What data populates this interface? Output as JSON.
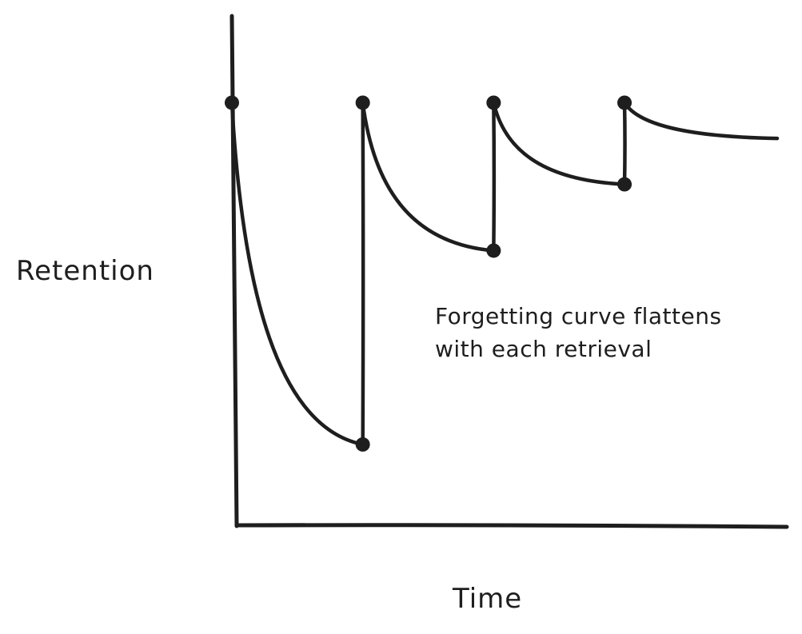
{
  "chart_data": {
    "type": "line",
    "title": "",
    "xlabel": "Time",
    "ylabel": "Retention",
    "ylim": [
      0,
      1
    ],
    "grid": false,
    "legend": "none",
    "annotation": {
      "lines": [
        "Forgetting curve flattens",
        "with each retrieval"
      ]
    },
    "series": [
      {
        "segments": [
          {
            "x": [
              0.0,
              0.24
            ],
            "y": [
              0.83,
              0.16
            ]
          },
          {
            "x": [
              0.24,
              0.48
            ],
            "y": [
              0.83,
              0.54
            ]
          },
          {
            "x": [
              0.48,
              0.72
            ],
            "y": [
              0.83,
              0.67
            ]
          },
          {
            "x": [
              0.72,
              1.0
            ],
            "y": [
              0.83,
              0.76
            ]
          }
        ],
        "markers": [
          {
            "x": 0.0,
            "y": 0.83
          },
          {
            "x": 0.24,
            "y": 0.83
          },
          {
            "x": 0.24,
            "y": 0.16
          },
          {
            "x": 0.48,
            "y": 0.83
          },
          {
            "x": 0.48,
            "y": 0.54
          },
          {
            "x": 0.72,
            "y": 0.83
          },
          {
            "x": 0.72,
            "y": 0.67
          }
        ]
      }
    ],
    "colors": {
      "ink": "#1e1e1e",
      "background": "#ffffff"
    }
  }
}
